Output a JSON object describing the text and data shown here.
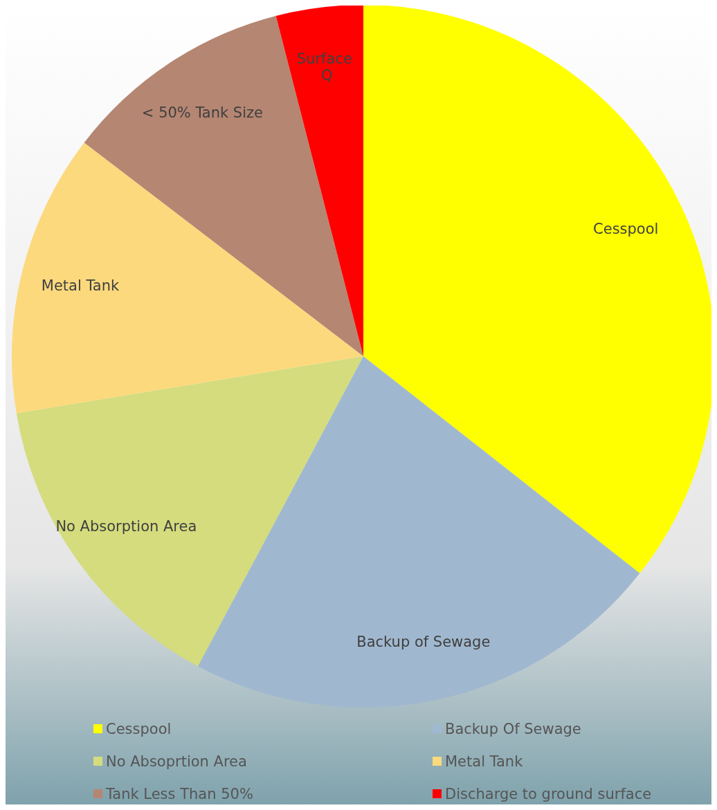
{
  "chart_data": {
    "type": "pie",
    "categories": [
      "Cesspool",
      "Backup Of Sewage",
      "No Absoprtion Area",
      "Metal Tank",
      "Tank Less Than 50%",
      "Discharge to ground surface"
    ],
    "values": [
      35.6,
      22.2,
      14.6,
      13.0,
      10.6,
      4.0
    ],
    "colors": [
      "#ffff00",
      "#a0b8cf",
      "#d4dc7d",
      "#fcd97d",
      "#b58672",
      "#ff0000"
    ],
    "value_labels": [
      "Cesspool",
      "Backup of Sewage",
      "No Absorption Area",
      "Metal Tank",
      "< 50% Tank Size",
      "Surface Q"
    ],
    "legend": "bottom"
  }
}
